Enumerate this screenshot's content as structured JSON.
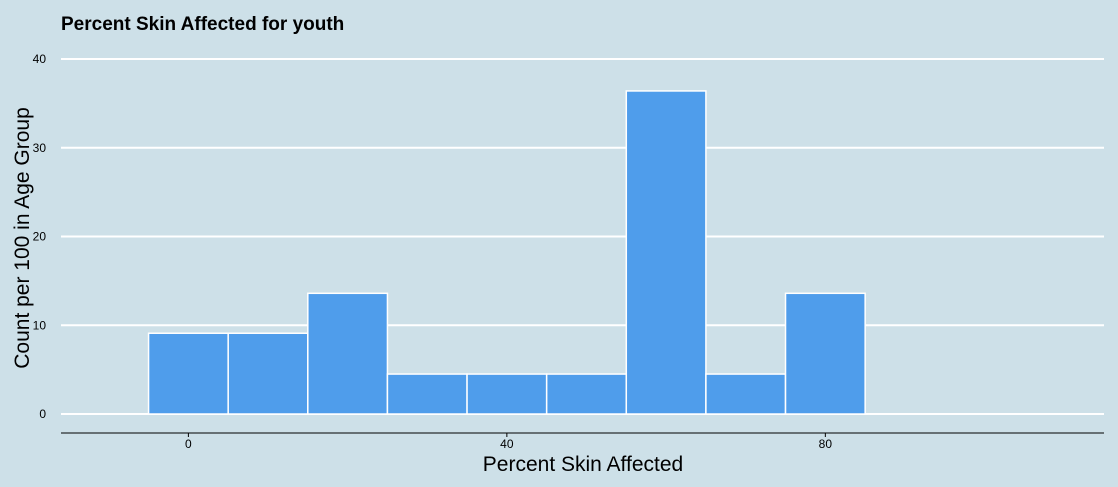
{
  "chart_data": {
    "type": "bar",
    "title": "Percent Skin Affected for youth",
    "xlabel": "Percent Skin Affected",
    "ylabel": "Count per 100 in Age Group",
    "bin_width": 10,
    "bins": [
      {
        "start": -5,
        "end": 5,
        "value": 9.1
      },
      {
        "start": 5,
        "end": 15,
        "value": 9.1
      },
      {
        "start": 15,
        "end": 25,
        "value": 13.6
      },
      {
        "start": 25,
        "end": 35,
        "value": 4.5
      },
      {
        "start": 35,
        "end": 45,
        "value": 4.5
      },
      {
        "start": 45,
        "end": 55,
        "value": 4.5
      },
      {
        "start": 55,
        "end": 65,
        "value": 36.4
      },
      {
        "start": 65,
        "end": 75,
        "value": 4.5
      },
      {
        "start": 75,
        "end": 85,
        "value": 13.6
      }
    ],
    "xlim": [
      -16,
      115
    ],
    "ylim": [
      0,
      40
    ],
    "x_ticks": [
      0,
      40,
      80
    ],
    "y_ticks": [
      0,
      10,
      20,
      30,
      40
    ],
    "grid": "horizontal",
    "legend": "none"
  },
  "colors": {
    "background": "#cde0e8",
    "bar_fill": "#4f9deb",
    "bar_stroke": "#ffffff",
    "grid": "#ffffff"
  }
}
